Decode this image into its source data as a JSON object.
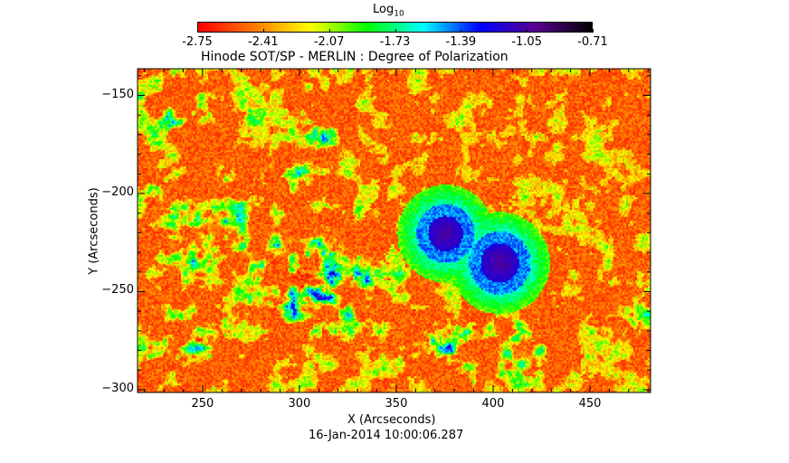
{
  "chart_data": {
    "type": "heatmap",
    "title": "Hinode SOT/SP - MERLIN : Degree of Polarization",
    "xlabel": "X (Arcseconds)",
    "ylabel": "Y (Arcseconds)",
    "xlim": [
      216.4,
      481.3
    ],
    "ylim": [
      -301.4,
      -136.4
    ],
    "xticks": [
      250,
      300,
      350,
      400,
      450
    ],
    "yticks": [
      -150,
      -200,
      -250,
      -300
    ],
    "timestamp": "16-Jan-2014 10:00:06.287",
    "colorbar": {
      "label_base": "Log",
      "label_sub": "10",
      "range": [
        -2.75,
        -0.71
      ],
      "ticks": [
        "-2.75",
        "-2.41",
        "-2.07",
        "-1.73",
        "-1.39",
        "-1.05",
        "-0.71"
      ],
      "colors": [
        "#ff0000",
        "#ff7a00",
        "#ffff00",
        "#00ff00",
        "#00ffff",
        "#0000ff",
        "#5a0090",
        "#000000"
      ]
    },
    "features": [
      {
        "name": "sunspot-umbra-1",
        "x": 375,
        "y": -220
      },
      {
        "name": "sunspot-umbra-2",
        "x": 403,
        "y": -235
      }
    ]
  }
}
